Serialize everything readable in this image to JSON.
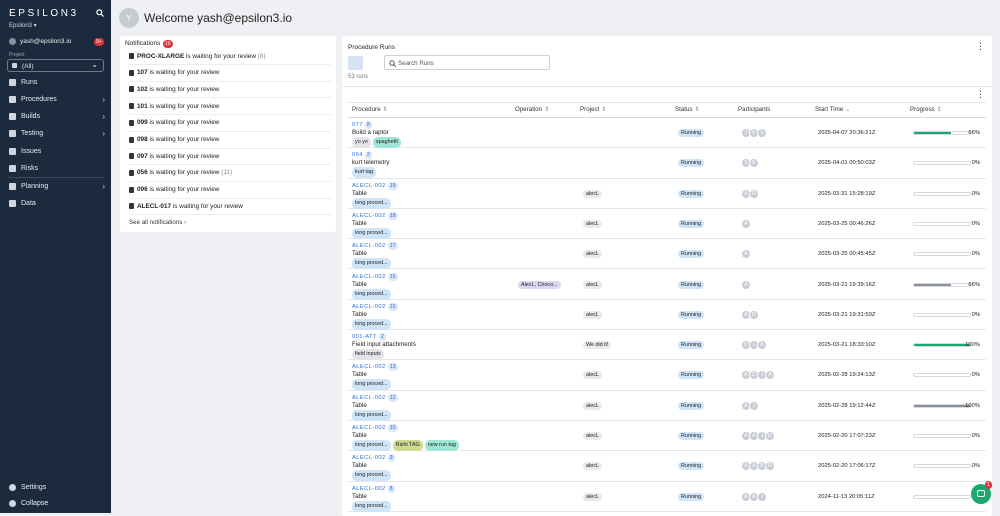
{
  "sidebar": {
    "logo": "EPSILON3",
    "workspace": "Epsilon3 ▾",
    "user": "yash@epsilon3.io",
    "user_badge": "9+",
    "project_label": "Project",
    "project_value": "(All)",
    "nav": [
      "Runs",
      "Procedures",
      "Builds",
      "Testing",
      "Issues",
      "Risks",
      "Planning",
      "Data"
    ],
    "bottom": [
      "Settings",
      "Collapse"
    ]
  },
  "header": {
    "avatar": "Y",
    "welcome": "Welcome yash@epsilon3.io"
  },
  "notifications": {
    "title": "Notifications",
    "badge": "10",
    "items": [
      {
        "id": "PROC-XLARGE",
        "text": " is waiting for your review",
        "count": " (8)"
      },
      {
        "id": "107",
        "text": " is waiting for your review"
      },
      {
        "id": "102",
        "text": " is waiting for your review"
      },
      {
        "id": "101",
        "text": " is waiting for your review"
      },
      {
        "id": "099",
        "text": " is waiting for your review"
      },
      {
        "id": "098",
        "text": " is waiting for your review"
      },
      {
        "id": "097",
        "text": " is waiting for your review"
      },
      {
        "id": "056",
        "text": " is waiting for your review",
        "count": " (11)"
      },
      {
        "id": "096",
        "text": " is waiting for your review"
      },
      {
        "id": "ALECL-017",
        "text": " is waiting for your review"
      }
    ],
    "footer": "See all notifications"
  },
  "runs": {
    "title": "Procedure Runs",
    "search_placeholder": "Search Runs",
    "count": "53 runs",
    "columns": [
      "Procedure",
      "Operation",
      "Project",
      "Status",
      "Participants",
      "Start Time",
      "Progress"
    ],
    "rows": [
      {
        "id": "077",
        "run": "8",
        "name": "Build a raptor",
        "tags": [
          {
            "label": "yo yo",
            "color": "#e3e5e8"
          },
          {
            "label": "spaghetti",
            "color": "#9fe6d6"
          }
        ],
        "status": "Running",
        "participants": [
          "J",
          "K",
          "S"
        ],
        "start": "2025-04-07 20:36:21Z",
        "progress": "66%",
        "bar_color": "#1aa86c"
      },
      {
        "id": "064",
        "run": "2",
        "name": "kurt telemetry",
        "tags": [
          {
            "label": "kurt tag",
            "color": "#cfe5f7"
          }
        ],
        "status": "Running",
        "participants": [
          "S",
          "K"
        ],
        "start": "2025-04-01 00:50:03Z",
        "progress": "0%",
        "bar_color": "#1aa86c"
      },
      {
        "id": "ALECL-002",
        "run": "19",
        "name": "Table",
        "tags": [
          {
            "label": "long proced...",
            "color": "#cfe5f7"
          }
        ],
        "project": "alecL",
        "status": "Running",
        "participants": [
          "A",
          "D"
        ],
        "start": "2025-03-31 15:28:19Z",
        "progress": "0%",
        "bar_color": "#1aa86c"
      },
      {
        "id": "ALECL-002",
        "run": "18",
        "name": "Table",
        "tags": [
          {
            "label": "long proced...",
            "color": "#cfe5f7"
          }
        ],
        "project": "alecL",
        "status": "Running",
        "participants": [
          "A"
        ],
        "start": "2025-03-25 00:46:26Z",
        "progress": "0%",
        "bar_color": "#1aa86c"
      },
      {
        "id": "ALECL-002",
        "run": "17",
        "name": "Table",
        "tags": [
          {
            "label": "long proced...",
            "color": "#cfe5f7"
          }
        ],
        "project": "alecL",
        "status": "Running",
        "participants": [
          "A"
        ],
        "start": "2025-03-25 00:45:45Z",
        "progress": "0%",
        "bar_color": "#1aa86c"
      },
      {
        "id": "ALECL-002",
        "run": "16",
        "name": "Table",
        "tags": [
          {
            "label": "long proced...",
            "color": "#cfe5f7"
          }
        ],
        "operation": "AlecL, Choco...",
        "project": "alecL",
        "status": "Running",
        "participants": [
          "A"
        ],
        "start": "2025-03-21 19:39:16Z",
        "progress": "66%",
        "bar_color": "#8a9099"
      },
      {
        "id": "ALECL-002",
        "run": "15",
        "name": "Table",
        "tags": [
          {
            "label": "long proced...",
            "color": "#cfe5f7"
          }
        ],
        "project": "alecL",
        "status": "Running",
        "participants": [
          "A",
          "D"
        ],
        "start": "2025-03-21 19:31:59Z",
        "progress": "0%",
        "bar_color": "#1aa86c"
      },
      {
        "id": "001-ATT",
        "run": "2",
        "name": "Field input attachments",
        "tags": [
          {
            "label": "field inputs",
            "color": "#e3e5e8"
          }
        ],
        "project": "We did it!",
        "status": "Running",
        "participants": [
          "D",
          "J",
          "A"
        ],
        "start": "2025-03-21 18:33:10Z",
        "progress": "100%",
        "bar_color": "#1aa86c"
      },
      {
        "id": "ALECL-002",
        "run": "13",
        "name": "Table",
        "tags": [
          {
            "label": "long proced...",
            "color": "#cfe5f7"
          }
        ],
        "project": "alecL",
        "status": "Running",
        "participants": [
          "A",
          "D",
          "J",
          "A"
        ],
        "start": "2025-02-28 19:24:13Z",
        "progress": "0%",
        "bar_color": "#1aa86c"
      },
      {
        "id": "ALECL-002",
        "run": "12",
        "name": "Table",
        "tags": [
          {
            "label": "long proced...",
            "color": "#cfe5f7"
          }
        ],
        "project": "alecL",
        "status": "Running",
        "participants": [
          "A",
          "J"
        ],
        "start": "2025-02-28 19:12:44Z",
        "progress": "100%",
        "bar_color": "#8a9099"
      },
      {
        "id": "ALECL-002",
        "run": "10",
        "name": "Table",
        "tags": [
          {
            "label": "long proced...",
            "color": "#cfe5f7"
          },
          {
            "label": "Rishi TAG",
            "color": "#cfd98f"
          },
          {
            "label": "new run tag",
            "color": "#9fe6d6"
          }
        ],
        "project": "alecL",
        "status": "Running",
        "participants": [
          "A",
          "A",
          "J",
          "D"
        ],
        "start": "2025-02-20 17:07:23Z",
        "progress": "0%",
        "bar_color": "#1aa86c"
      },
      {
        "id": "ALECL-002",
        "run": "9",
        "name": "Table",
        "tags": [
          {
            "label": "long proced...",
            "color": "#cfe5f7"
          }
        ],
        "project": "alecL",
        "status": "Running",
        "participants": [
          "A",
          "A",
          "B",
          "D"
        ],
        "start": "2025-02-20 17:06:17Z",
        "progress": "0%",
        "bar_color": "#1aa86c"
      },
      {
        "id": "ALECL-002",
        "run": "8",
        "name": "Table",
        "tags": [
          {
            "label": "long proced...",
            "color": "#cfe5f7"
          }
        ],
        "project": "alecL",
        "status": "Running",
        "participants": [
          "A",
          "A",
          "J"
        ],
        "start": "2024-11-13 20:05:11Z",
        "progress": "0%",
        "bar_color": "#1aa86c"
      }
    ]
  },
  "chat_badge": "1"
}
